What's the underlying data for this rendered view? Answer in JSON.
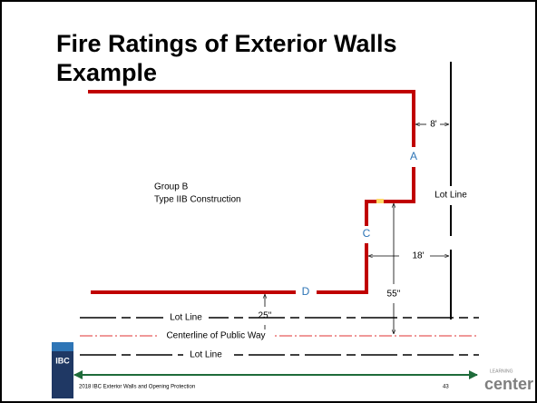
{
  "title": [
    "Fire Ratings of Exterior Walls",
    "Example"
  ],
  "building": {
    "occupancy": "Group B",
    "construction": "Type IIB Construction"
  },
  "walls": [
    "A",
    "C",
    "D"
  ],
  "dimensions": [
    "8'",
    "18'",
    "55''",
    "25''"
  ],
  "lines": {
    "lot_line_right": "Lot Line",
    "lot_line_near": "Lot Line",
    "centerline": "Centerline of Public Way",
    "lot_line_far": "Lot Line"
  },
  "book": "IBC",
  "footer": {
    "text": "2018 IBC Exterior Walls and Opening Protection",
    "page": "43",
    "logo_small": "LEARNING",
    "logo": "center"
  }
}
